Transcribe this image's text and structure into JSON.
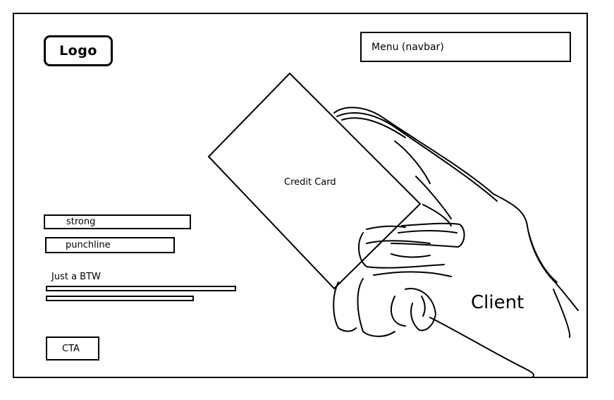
{
  "wireframe": {
    "logo_label": "Logo",
    "menu_label": "Menu (navbar)",
    "card_label": "Credit Card",
    "client_label": "Client",
    "headline_label": "strong",
    "subheadline_label": "punchline",
    "note_label": "Just a BTW",
    "cta_label": "CTA"
  },
  "icons": {
    "card": "credit-card-icon",
    "hand": "hand-icon"
  }
}
